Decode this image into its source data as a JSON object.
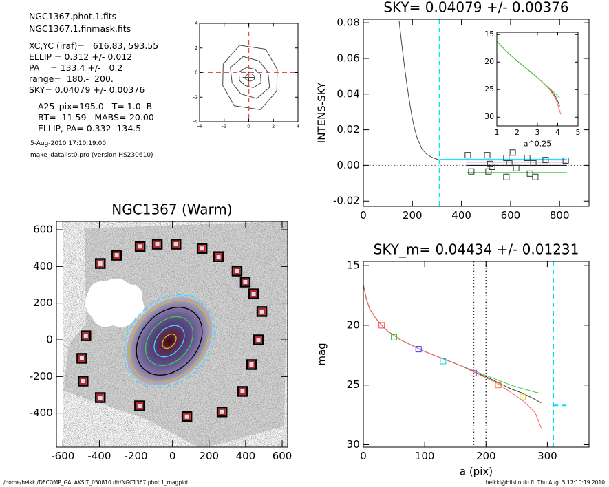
{
  "header": {
    "lines": [
      "NGC1367.phot.1.fits",
      "NGC1367.1.finmask.fits",
      "XC,YC (iraf)=   616.83, 593.55",
      "ELLIP = 0.312 +/- 0.012",
      "PA    = 133.4 +/-   0.2",
      "range=  180.-  200.",
      "SKY= 0.04079 +/- 0.00376",
      "A25_pix=195.0   T= 1.0  B",
      "BT=  11.59   MABS=-20.00",
      "ELLIP, PA= 0.332  134.5",
      "5-Aug-2010 17:10:19.00",
      "make_datalist0.pro (version HS230610)"
    ]
  },
  "footer": {
    "left": "/home/heikki/DECOMP_GALAKSIT_050810.dir/NGC1367.phot.1_magplot",
    "right": "heikki@hiisi.oulu.fi  Thu Aug  5 17:10:19 2010"
  },
  "chart_data": [
    {
      "type": "contour",
      "xlim": [
        -4,
        4
      ],
      "ylim": [
        -4,
        4
      ],
      "xticks": [
        -4,
        -2,
        0,
        2,
        4
      ],
      "yticks": [
        -4,
        -2,
        0,
        2,
        4
      ],
      "vlines": [
        {
          "x": 0,
          "color": "#e05050",
          "dash": "dashed"
        }
      ],
      "hlines": [
        {
          "y": 0,
          "color": "#e05050",
          "dash": "dashed"
        }
      ]
    },
    {
      "type": "line",
      "title": "SKY= 0.04079 +/- 0.00376",
      "ylabel": "INTENS-SKY",
      "xlim": [
        0,
        920
      ],
      "ylim": [
        -0.023,
        0.082
      ],
      "xticks": [
        0,
        200,
        400,
        600,
        800
      ],
      "yticks": [
        -0.02,
        {
          "value": 0,
          "label": "0.00"
        },
        0.02,
        0.04,
        0.06,
        0.08
      ],
      "series": [
        {
          "color": "#444444",
          "x": [
            146,
            150,
            160,
            170,
            180,
            190,
            200,
            210,
            220,
            230,
            240,
            260,
            280,
            300,
            310
          ],
          "values": [
            0.081,
            0.076,
            0.064,
            0.053,
            0.043,
            0.034,
            0.026,
            0.02,
            0.015,
            0.012,
            0.009,
            0.006,
            0.0045,
            0.0035,
            0.003
          ]
        },
        {
          "color": "#00e0ff",
          "x": [
            310,
            830
          ],
          "values": [
            0.0035,
            0.0035
          ]
        },
        {
          "color": "#ff6060",
          "x": [
            420,
            830
          ],
          "values": [
            0.003,
            0.003
          ]
        },
        {
          "color": "#4060ff",
          "x": [
            420,
            830
          ],
          "values": [
            0.0018,
            0.0018
          ]
        },
        {
          "color": "#000000",
          "x": [
            420,
            830
          ],
          "values": [
            0,
            0
          ]
        },
        {
          "color": "#40d040",
          "x": [
            420,
            830
          ],
          "values": [
            -0.004,
            -0.004
          ]
        },
        {
          "color": "#333333",
          "marker": "square",
          "x": [
            426,
            440,
            505,
            510,
            517,
            525,
            583,
            583,
            595,
            609,
            623,
            668,
            679,
            693,
            701,
            743,
            825
          ],
          "values": [
            0.0057,
            -0.0034,
            0.0057,
            -0.0034,
            0.0008,
            -0.0008,
            0.0042,
            -0.0065,
            0.0011,
            0.0072,
            -0.0015,
            0.0042,
            -0.0046,
            0.0011,
            -0.0065,
            0.003,
            0.0027
          ]
        }
      ],
      "vlines": [
        {
          "x": 310,
          "color": "#00e0ff",
          "dash": "dashed"
        }
      ],
      "hlines": [
        {
          "y": 0,
          "color": "#555555",
          "dash": "dotted"
        }
      ]
    },
    {
      "type": "line",
      "xlabel": "a^0.25",
      "xlim": [
        1,
        5
      ],
      "ylim": [
        14.6,
        31.6
      ],
      "y_inverted": true,
      "xticks": [
        1,
        2,
        3,
        4,
        5
      ],
      "yticks": [
        15,
        20,
        25,
        30
      ],
      "series": [
        {
          "color": "#444444",
          "x": [
            1,
            1.3,
            1.6,
            2,
            2.4,
            2.8,
            3.2,
            3.6,
            3.9,
            4.1
          ],
          "values": [
            16.2,
            17.4,
            18.5,
            19.8,
            21,
            22.2,
            23.5,
            24.9,
            26.3,
            28
          ]
        },
        {
          "color": "#ff6060",
          "x": [
            1,
            1.3,
            1.6,
            2,
            2.4,
            2.8,
            3.2,
            3.6,
            3.9,
            4.15
          ],
          "values": [
            16.2,
            17.4,
            18.5,
            19.8,
            21,
            22.2,
            23.5,
            25,
            26.6,
            29.5
          ]
        },
        {
          "color": "#40d040",
          "x": [
            1,
            1.3,
            1.6,
            2,
            2.4,
            2.8,
            3.2,
            3.6,
            3.9,
            4.1
          ],
          "values": [
            16.2,
            17.4,
            18.5,
            19.8,
            21,
            22.2,
            23.5,
            24.8,
            25.8,
            26.5
          ]
        }
      ]
    },
    {
      "type": "image",
      "title": "NGC1367 (Warm)",
      "xlim": [
        -635,
        630
      ],
      "ylim": [
        -585,
        645
      ],
      "xticks": [
        -600,
        -400,
        -200,
        0,
        200,
        400,
        600
      ],
      "yticks": [
        -400,
        -200,
        0,
        200,
        400,
        600
      ],
      "series": [
        {
          "color": "#c0202a",
          "marker": "bigsquare",
          "x": [
            -177,
            -83,
            19,
            162,
            252,
            -305,
            -395,
            353,
            398,
            444,
            489,
            470,
            432,
            383,
            271,
            79,
            -180,
            -395,
            -489,
            -496,
            -474
          ],
          "values": [
            509,
            521,
            521,
            498,
            453,
            461,
            416,
            375,
            315,
            251,
            154,
            0,
            -135,
            -281,
            -393,
            -419,
            -360,
            -315,
            -225,
            -101,
            22
          ]
        }
      ]
    },
    {
      "type": "line",
      "title": "SKY_m=  0.04434 +/- 0.01231",
      "xlabel": "a (pix)",
      "ylabel": "mag",
      "xlim": [
        0,
        368
      ],
      "ylim": [
        14.65,
        30.2
      ],
      "y_inverted": true,
      "xticks": [
        0,
        100,
        200,
        300
      ],
      "yticks": [
        15,
        20,
        25,
        30
      ],
      "series": [
        {
          "color": "#40d040",
          "x": [
            0,
            5,
            10,
            20,
            30,
            40,
            60,
            80,
            100,
            120,
            140,
            160,
            180,
            200,
            220,
            240,
            260,
            280,
            290
          ],
          "values": [
            16.6,
            17.8,
            18.6,
            19.4,
            20,
            20.5,
            21.2,
            21.7,
            22.2,
            22.6,
            23,
            23.4,
            23.8,
            24.2,
            24.6,
            25,
            25.3,
            25.6,
            25.7
          ]
        },
        {
          "color": "#333333",
          "x": [
            0,
            5,
            10,
            20,
            30,
            40,
            60,
            80,
            100,
            120,
            140,
            160,
            180,
            200,
            220,
            240,
            260,
            280,
            290
          ],
          "values": [
            16.6,
            17.8,
            18.6,
            19.4,
            20,
            20.5,
            21.2,
            21.7,
            22.2,
            22.6,
            23,
            23.4,
            23.9,
            24.3,
            24.8,
            25.3,
            25.7,
            26.2,
            26.5
          ]
        },
        {
          "color": "#ff6060",
          "x": [
            0,
            5,
            10,
            20,
            30,
            40,
            60,
            80,
            100,
            120,
            140,
            160,
            180,
            200,
            220,
            240,
            260,
            280,
            290
          ],
          "values": [
            16.6,
            17.8,
            18.6,
            19.4,
            20,
            20.5,
            21.2,
            21.7,
            22.2,
            22.6,
            23,
            23.4,
            23.9,
            24.4,
            24.9,
            25.6,
            26.3,
            27.3,
            28.6
          ]
        },
        {
          "marker": "square",
          "colors": [
            "#ff4040",
            "#30c030",
            "#3040ff",
            "#00d0e0",
            "#d040d0",
            "#ff8020",
            "#e0d020"
          ],
          "x": [
            30,
            50,
            90,
            130,
            180,
            220,
            260
          ],
          "values": [
            20,
            21,
            22,
            23,
            24,
            25,
            26
          ]
        }
      ],
      "vlines": [
        {
          "x": 180,
          "color": "#333333",
          "dash": "dotted"
        },
        {
          "x": 200,
          "color": "#333333",
          "dash": "dotted"
        },
        {
          "x": 310,
          "color": "#00e0ff",
          "dash": "dashed"
        }
      ],
      "hlines": [
        {
          "y": 26.7,
          "x": [
            310,
            335
          ],
          "color": "#00e0ff",
          "dash": "dashed"
        }
      ]
    }
  ]
}
